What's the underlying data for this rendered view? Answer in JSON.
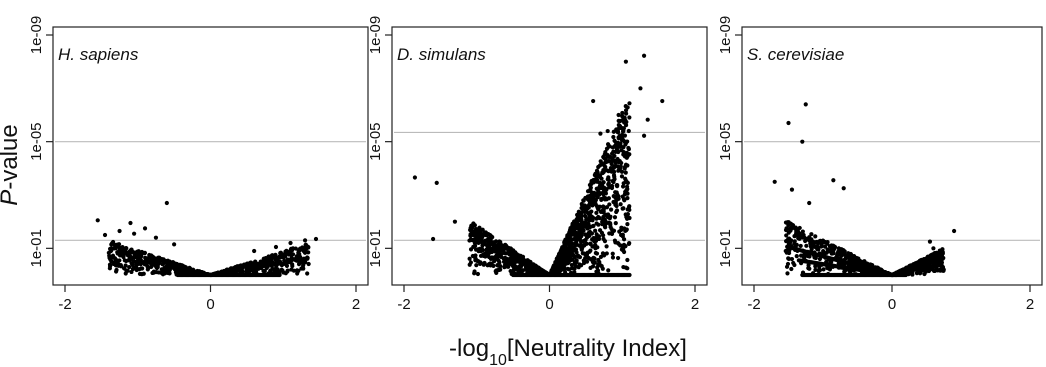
{
  "figure": {
    "ylabel_italic": "P",
    "ylabel_rest": "-value",
    "xlabel_pre": "-log",
    "xlabel_sub": "10",
    "xlabel_post": "[Neutrality Index]"
  },
  "chart_data": [
    {
      "type": "scatter",
      "title": "H. sapiens",
      "xlabel": "-log10[Neutrality Index]",
      "ylabel": "P-value",
      "xlim": [
        -2,
        2
      ],
      "ylim": [
        1,
        1e-09
      ],
      "y_log_scale": true,
      "x_ticks": [
        "-2",
        "0",
        "2"
      ],
      "y_ticks": [
        "1e-01",
        "1e-05",
        "1e-09"
      ],
      "reference_lines": [
        0.05,
        1e-05
      ],
      "point_color": "#000000",
      "notable_points": [
        {
          "x": -1.55,
          "y": 0.0089
        },
        {
          "x": -1.45,
          "y": 0.0316
        },
        {
          "x": -1.25,
          "y": 0.0224
        },
        {
          "x": -1.1,
          "y": 0.0112
        },
        {
          "x": -1.05,
          "y": 0.0282
        },
        {
          "x": -0.9,
          "y": 0.0178
        },
        {
          "x": -0.6,
          "y": 0.002
        },
        {
          "x": -0.75,
          "y": 0.0398
        },
        {
          "x": -0.5,
          "y": 0.0708
        },
        {
          "x": 0.6,
          "y": 0.1259
        },
        {
          "x": 0.9,
          "y": 0.0891
        },
        {
          "x": 1.1,
          "y": 0.0631
        },
        {
          "x": 1.3,
          "y": 0.0501
        },
        {
          "x": 1.45,
          "y": 0.0447
        }
      ],
      "left_arm": {
        "x_start": -1.4,
        "x_end": 0,
        "y_start": 0.05,
        "y_end": 1
      },
      "right_arm": {
        "x_start": 0,
        "x_end": 1.35,
        "y_start": 1,
        "y_end": 0.063
      },
      "floor_band": {
        "x_start": -0.45,
        "x_end": 0.95,
        "y": 1
      }
    },
    {
      "type": "scatter",
      "title": "D. simulans",
      "xlabel": "-log10[Neutrality Index]",
      "ylabel": "P-value",
      "xlim": [
        -2,
        2
      ],
      "ylim": [
        1,
        1e-09
      ],
      "y_log_scale": true,
      "x_ticks": [
        "-2",
        "0",
        "2"
      ],
      "y_ticks": [
        "1e-01",
        "1e-05",
        "1e-09"
      ],
      "reference_lines": [
        0.05,
        4.5e-06
      ],
      "point_color": "#000000",
      "notable_points": [
        {
          "x": -1.85,
          "y": 0.00022
        },
        {
          "x": -1.55,
          "y": 0.00035
        },
        {
          "x": -1.6,
          "y": 0.0447
        },
        {
          "x": -1.3,
          "y": 0.01
        },
        {
          "x": -1.05,
          "y": 0.0316
        },
        {
          "x": 1.3,
          "y": 6e-09
        },
        {
          "x": 1.05,
          "y": 1e-08
        },
        {
          "x": 1.25,
          "y": 1e-07
        },
        {
          "x": 1.3,
          "y": 6e-06
        },
        {
          "x": 1.35,
          "y": 1.5e-06
        },
        {
          "x": 1.55,
          "y": 3e-07
        },
        {
          "x": 0.8,
          "y": 4e-06
        },
        {
          "x": 0.95,
          "y": 1e-06
        },
        {
          "x": 0.6,
          "y": 3e-07
        },
        {
          "x": 0.7,
          "y": 5e-06
        }
      ],
      "left_arm": {
        "x_start": -1.1,
        "x_end": 0,
        "y_start": 0.0089,
        "y_end": 1
      },
      "right_arm": {
        "x_start": 0,
        "x_end": 1.1,
        "y_start": 1,
        "y_end": 2e-07
      },
      "floor_band": {
        "x_start": -0.5,
        "x_end": 1.1,
        "y": 1
      }
    },
    {
      "type": "scatter",
      "title": "S. cerevisiae",
      "xlabel": "-log10[Neutrality Index]",
      "ylabel": "P-value",
      "xlim": [
        -2,
        2
      ],
      "ylim": [
        1,
        1e-09
      ],
      "y_log_scale": true,
      "x_ticks": [
        "-2",
        "0",
        "2"
      ],
      "y_ticks": [
        "1e-01",
        "1e-05",
        "1e-09"
      ],
      "reference_lines": [
        0.05,
        1e-05
      ],
      "point_color": "#000000",
      "notable_points": [
        {
          "x": -1.25,
          "y": 4e-07
        },
        {
          "x": -1.5,
          "y": 2e-06
        },
        {
          "x": -1.3,
          "y": 1e-05
        },
        {
          "x": -1.7,
          "y": 0.00032
        },
        {
          "x": -1.45,
          "y": 0.00063
        },
        {
          "x": -0.85,
          "y": 0.00028
        },
        {
          "x": -0.7,
          "y": 0.00056
        },
        {
          "x": -1.2,
          "y": 0.002
        },
        {
          "x": 0.9,
          "y": 0.0224
        },
        {
          "x": 0.55,
          "y": 0.0562
        },
        {
          "x": 0.75,
          "y": 0.631
        },
        {
          "x": 0.6,
          "y": 0.1
        }
      ],
      "left_arm": {
        "x_start": -1.55,
        "x_end": 0,
        "y_start": 0.0089,
        "y_end": 1
      },
      "right_arm": {
        "x_start": 0,
        "x_end": 0.75,
        "y_start": 1,
        "y_end": 0.1
      },
      "floor_band": {
        "x_start": -1.3,
        "x_end": 0.2,
        "y": 1
      },
      "diagonal_lines": [
        {
          "x0": -1.5,
          "y0": 0.0891,
          "x1": 0,
          "y1": 1
        },
        {
          "x0": -1.35,
          "y0": 0.282,
          "x1": 0,
          "y1": 1
        }
      ]
    }
  ]
}
